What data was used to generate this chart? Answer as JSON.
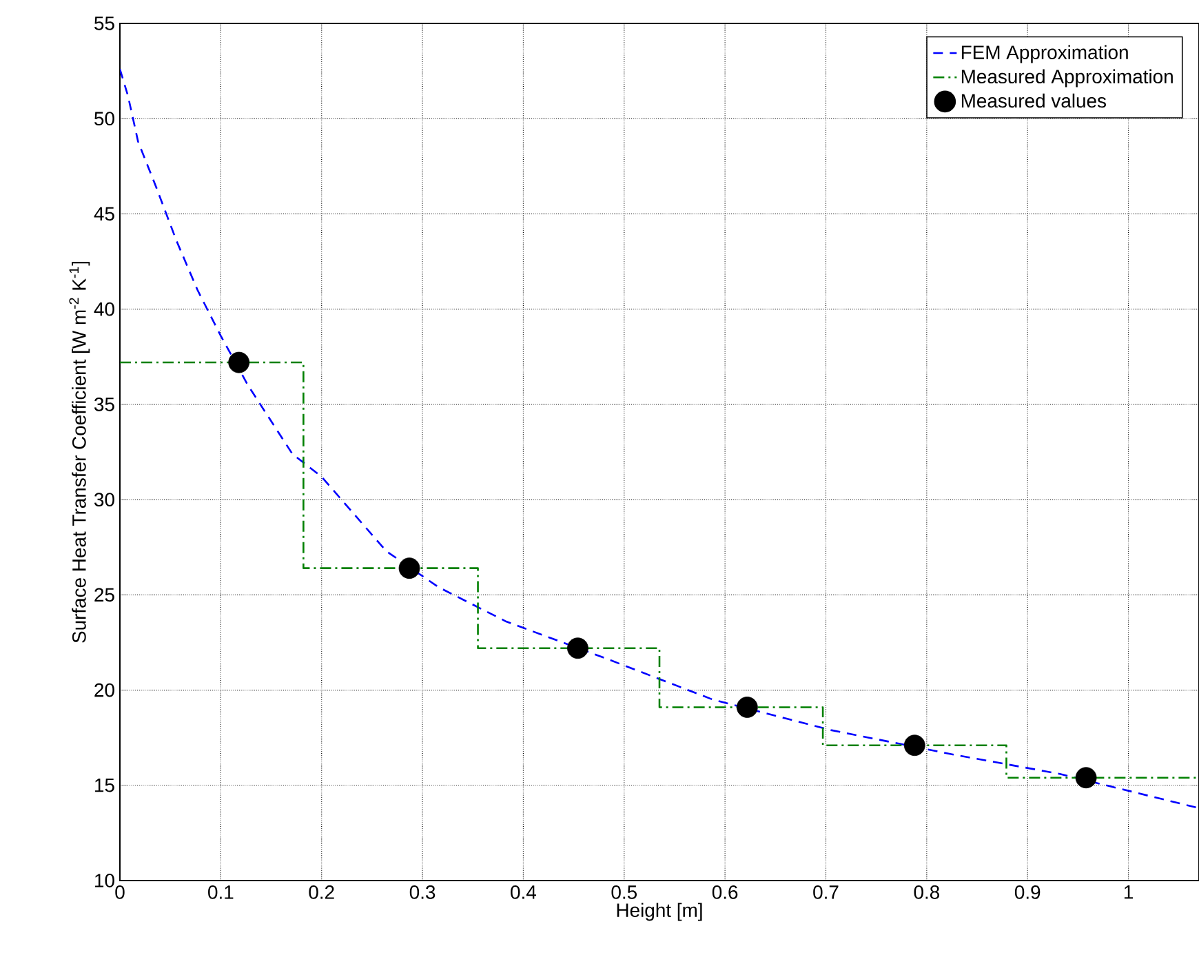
{
  "chart_data": {
    "type": "line",
    "xlabel": "Height [m]",
    "ylabel": "Surface Heat Transfer Coefficient [W m$^{-2}$ K$^{-1}$]",
    "xlim": [
      0,
      1.07
    ],
    "ylim": [
      10,
      55
    ],
    "xticks": [
      0,
      0.1,
      0.2,
      0.3,
      0.4,
      0.5,
      0.6,
      0.7,
      0.8,
      0.9,
      1
    ],
    "yticks": [
      10,
      15,
      20,
      25,
      30,
      35,
      40,
      45,
      50,
      55
    ],
    "grid": true,
    "legend": "top right",
    "series": [
      {
        "name": "FEM Approximation",
        "color": "#0000ff",
        "line_style": "dashed",
        "marker": "none",
        "x": [
          0,
          0.008,
          0.018,
          0.036,
          0.056,
          0.077,
          0.1,
          0.127,
          0.171,
          0.2,
          0.264,
          0.316,
          0.383,
          0.485,
          0.588,
          0.705,
          0.828,
          0.932,
          1.07
        ],
        "values": [
          52.6,
          51.2,
          48.8,
          46.4,
          43.6,
          41.0,
          38.6,
          36.0,
          32.4,
          31.2,
          27.3,
          25.4,
          23.6,
          21.6,
          19.5,
          17.9,
          16.6,
          15.6,
          13.8
        ]
      },
      {
        "name": "Measured Approximation",
        "type": "step",
        "color": "#008000",
        "line_style": "dashdot",
        "marker": "none",
        "x": [
          0,
          0.182,
          0.355,
          0.535,
          0.697,
          0.879,
          1.07
        ],
        "values": [
          37.2,
          26.4,
          22.2,
          19.1,
          17.1,
          15.4,
          15.4
        ]
      },
      {
        "name": "Measured values",
        "type": "scatter",
        "color": "#000000",
        "marker": "circle",
        "x": [
          0.118,
          0.287,
          0.454,
          0.622,
          0.788,
          0.958
        ],
        "values": [
          37.2,
          26.4,
          22.2,
          19.1,
          17.1,
          15.4
        ]
      }
    ]
  }
}
